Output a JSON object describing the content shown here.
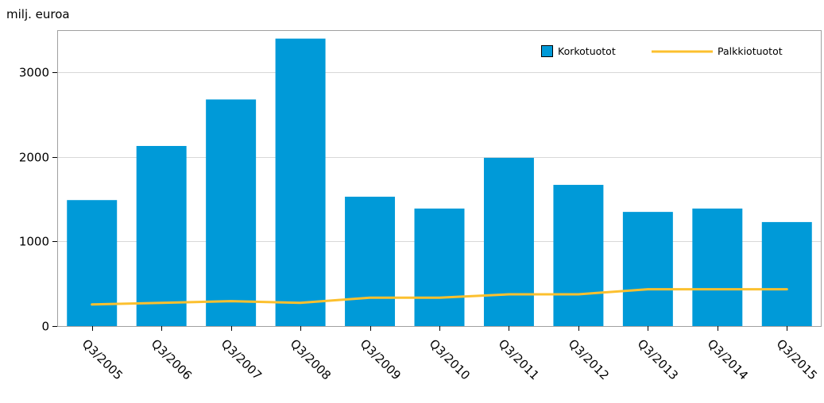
{
  "chart_data": {
    "type": "bar",
    "unit_label": "milj. euroa",
    "categories": [
      "Q3/2005",
      "Q3/2006",
      "Q3/2007",
      "Q3/2008",
      "Q3/2009",
      "Q3/2010",
      "Q3/2011",
      "Q3/2012",
      "Q3/2013",
      "Q3/2014",
      "Q3/2015"
    ],
    "series": [
      {
        "name": "Korkotuotot",
        "kind": "bar",
        "color": "#009ad8",
        "values": [
          1490,
          2130,
          2680,
          3400,
          1530,
          1390,
          1990,
          1670,
          1350,
          1390,
          1230
        ]
      },
      {
        "name": "Palkkiotuotot",
        "kind": "line",
        "color": "#fcc02e",
        "values": [
          255,
          275,
          295,
          275,
          335,
          335,
          375,
          375,
          435,
          435,
          435
        ]
      }
    ],
    "ylim": [
      0,
      3500
    ],
    "yticks": [
      0,
      1000,
      2000,
      3000
    ],
    "grid": true,
    "legend_position": "top-right"
  }
}
